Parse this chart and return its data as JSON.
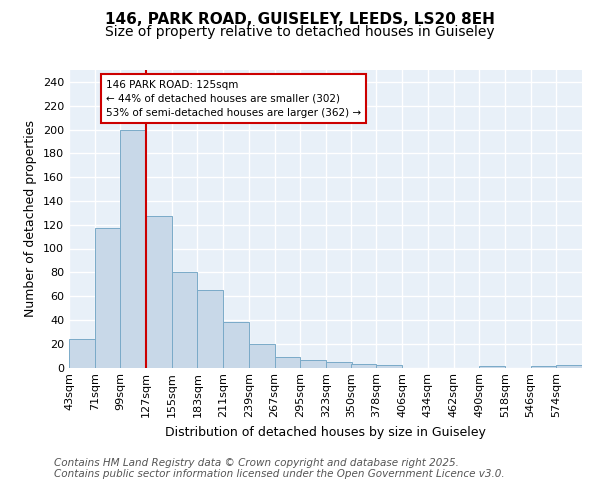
{
  "title": "146, PARK ROAD, GUISELEY, LEEDS, LS20 8EH",
  "subtitle": "Size of property relative to detached houses in Guiseley",
  "xlabel": "Distribution of detached houses by size in Guiseley",
  "ylabel": "Number of detached properties",
  "bar_color": "#c8d8e8",
  "bar_edge_color": "#7aaac8",
  "background_color": "#e8f0f8",
  "grid_color": "#ffffff",
  "vline_color": "#cc0000",
  "annotation_text": "146 PARK ROAD: 125sqm\n← 44% of detached houses are smaller (302)\n53% of semi-detached houses are larger (362) →",
  "annotation_box_color": "#ffffff",
  "annotation_box_edge": "#cc0000",
  "bins": [
    43,
    71,
    99,
    127,
    155,
    183,
    211,
    239,
    267,
    295,
    323,
    350,
    378,
    406,
    434,
    462,
    490,
    518,
    546,
    574,
    602
  ],
  "values": [
    24,
    117,
    200,
    127,
    80,
    65,
    38,
    20,
    9,
    6,
    5,
    3,
    2,
    0,
    0,
    0,
    1,
    0,
    1,
    2
  ],
  "ylim": [
    0,
    250
  ],
  "yticks": [
    0,
    20,
    40,
    60,
    80,
    100,
    120,
    140,
    160,
    180,
    200,
    220,
    240
  ],
  "fig_bg": "#ffffff",
  "footer_text": "Contains HM Land Registry data © Crown copyright and database right 2025.\nContains public sector information licensed under the Open Government Licence v3.0.",
  "title_fontsize": 11,
  "subtitle_fontsize": 10,
  "label_fontsize": 9,
  "tick_fontsize": 8,
  "footer_fontsize": 7.5
}
